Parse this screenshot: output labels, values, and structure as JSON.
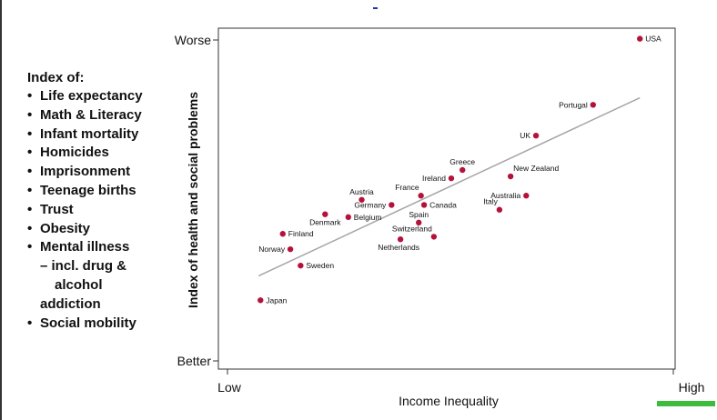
{
  "sidebar": {
    "title": "Index of:",
    "items": [
      {
        "text": "Life expectancy",
        "kind": "bullet"
      },
      {
        "text": "Math & Literacy",
        "kind": "bullet"
      },
      {
        "text": "Infant mortality",
        "kind": "bullet"
      },
      {
        "text": "Homicides",
        "kind": "bullet"
      },
      {
        "text": "Imprisonment",
        "kind": "bullet"
      },
      {
        "text": "Teenage births",
        "kind": "bullet"
      },
      {
        "text": "Trust",
        "kind": "bullet"
      },
      {
        "text": "Obesity",
        "kind": "bullet"
      },
      {
        "text": "Mental illness",
        "kind": "bullet"
      },
      {
        "text": "– incl. drug &",
        "kind": "sub"
      },
      {
        "text": "alcohol",
        "kind": "sub2"
      },
      {
        "text": "addiction",
        "kind": "sub3"
      },
      {
        "text": "Social mobility",
        "kind": "bullet"
      }
    ]
  },
  "colors": {
    "point": "#b5123a",
    "trend": "#a6a6a6",
    "footer_bar": "#3dbb3d"
  },
  "chart_data": {
    "type": "scatter",
    "xlabel": "Income Inequality",
    "ylabel": "Index of health and social problems",
    "x_ticks": [
      {
        "label": "Low",
        "value": 0
      },
      {
        "label": "High",
        "value": 100
      }
    ],
    "y_ticks": [
      {
        "label": "Worse",
        "value": 100
      },
      {
        "label": "Better",
        "value": 0
      }
    ],
    "xlim": [
      0,
      100
    ],
    "ylim": [
      0,
      100
    ],
    "grid": false,
    "points": [
      {
        "label": "USA",
        "x": 92.5,
        "y": 100.4,
        "label_pos": "right"
      },
      {
        "label": "Portugal",
        "x": 82.0,
        "y": 79.8,
        "label_pos": "left"
      },
      {
        "label": "UK",
        "x": 69.2,
        "y": 70.2,
        "label_pos": "left"
      },
      {
        "label": "Greece",
        "x": 52.7,
        "y": 59.5,
        "label_pos": "above"
      },
      {
        "label": "New Zealand",
        "x": 63.5,
        "y": 57.5,
        "label_pos": "aboveright"
      },
      {
        "label": "Ireland",
        "x": 50.2,
        "y": 56.9,
        "label_pos": "left"
      },
      {
        "label": "Australia",
        "x": 67.0,
        "y": 51.5,
        "label_pos": "left"
      },
      {
        "label": "Italy",
        "x": 61.0,
        "y": 47.1,
        "label_pos": "aboveleft"
      },
      {
        "label": "France",
        "x": 43.4,
        "y": 51.5,
        "label_pos": "aboveleft"
      },
      {
        "label": "Austria",
        "x": 30.1,
        "y": 50.2,
        "label_pos": "above"
      },
      {
        "label": "Germany",
        "x": 36.8,
        "y": 48.6,
        "label_pos": "left"
      },
      {
        "label": "Canada",
        "x": 44.1,
        "y": 48.6,
        "label_pos": "right"
      },
      {
        "label": "Denmark",
        "x": 21.9,
        "y": 45.7,
        "label_pos": "below"
      },
      {
        "label": "Belgium",
        "x": 27.1,
        "y": 44.8,
        "label_pos": "right"
      },
      {
        "label": "Spain",
        "x": 42.9,
        "y": 43.1,
        "label_pos": "above"
      },
      {
        "label": "Switzerland",
        "x": 46.3,
        "y": 38.7,
        "label_pos": "aboveleft"
      },
      {
        "label": "Netherlands",
        "x": 38.8,
        "y": 37.9,
        "label_pos": "belowleft"
      },
      {
        "label": "Finland",
        "x": 12.4,
        "y": 39.6,
        "label_pos": "right"
      },
      {
        "label": "Norway",
        "x": 14.1,
        "y": 34.8,
        "label_pos": "left"
      },
      {
        "label": "Sweden",
        "x": 16.4,
        "y": 29.7,
        "label_pos": "right"
      },
      {
        "label": "Japan",
        "x": 7.4,
        "y": 18.9,
        "label_pos": "right"
      }
    ],
    "trend_line": {
      "x": [
        7.0,
        92.5
      ],
      "y": [
        26.5,
        82.0
      ]
    }
  }
}
